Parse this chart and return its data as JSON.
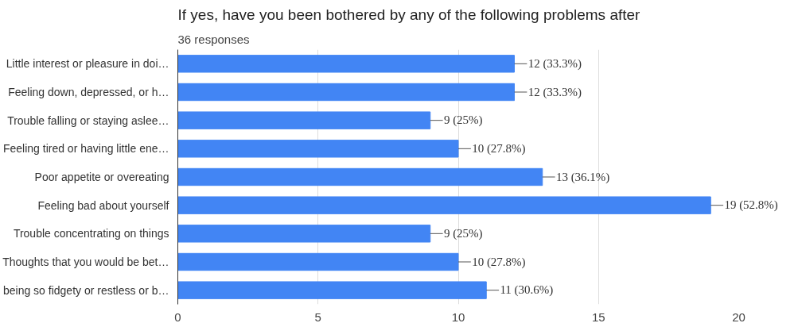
{
  "chart_data": {
    "type": "bar",
    "orientation": "horizontal",
    "title": "If yes, have you been bothered by any of the following problems after",
    "subtitle": "36 responses",
    "categories": [
      "Little interest or pleasure in doi…",
      "Feeling down, depressed, or h…",
      "Trouble falling or staying aslee…",
      "Feeling tired or having little ene…",
      "Poor appetite or overeating",
      "Feeling bad about yourself",
      "Trouble concentrating on things",
      "Thoughts that you would be bet…",
      "being so fidgety or restless or b…"
    ],
    "values": [
      12,
      12,
      9,
      10,
      13,
      19,
      9,
      10,
      11
    ],
    "value_labels": [
      "12 (33.3%)",
      "12 (33.3%)",
      "9 (25%)",
      "10 (27.8%)",
      "13 (36.1%)",
      "19 (52.8%)",
      "9 (25%)",
      "10 (27.8%)",
      "11 (30.6%)"
    ],
    "color": "#4285f4",
    "xlim": [
      0,
      20
    ],
    "xticks": [
      0,
      5,
      10,
      15,
      20
    ],
    "grid": "x"
  }
}
